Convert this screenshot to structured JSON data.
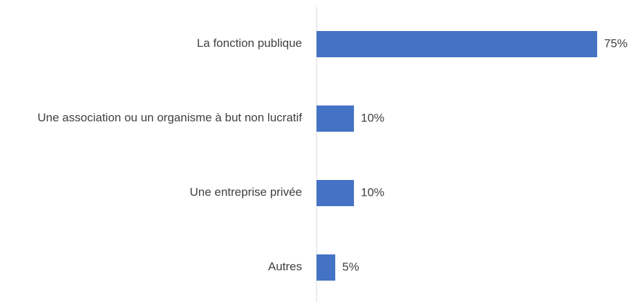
{
  "chart_data": {
    "type": "bar",
    "orientation": "horizontal",
    "categories": [
      "La fonction publique",
      "Une association ou un organisme à but non lucratif",
      "Une entreprise privée",
      "Autres"
    ],
    "values": [
      75,
      10,
      10,
      5
    ],
    "value_labels": [
      "75%",
      "10%",
      "10%",
      "5%"
    ],
    "color": "#4472c4"
  }
}
